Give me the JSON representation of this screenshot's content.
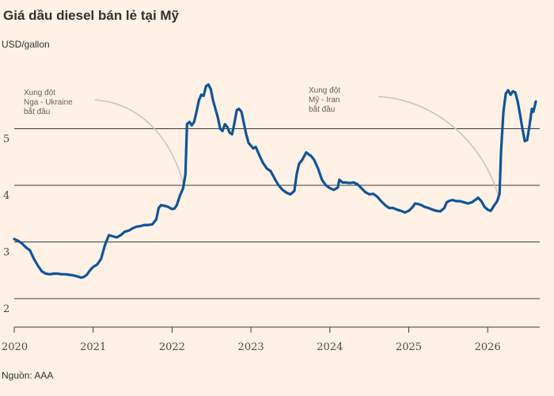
{
  "chart_data": {
    "type": "line",
    "title": "Giá dầu diesel bán lẻ tại Mỹ",
    "subtitle": "USD/gallon",
    "source": "Nguồn: AAA",
    "xlabel": "",
    "ylabel": "",
    "xlim": [
      2020.0,
      2026.65
    ],
    "ylim": [
      1.6,
      5.8
    ],
    "y_ticks": [
      2,
      3,
      4,
      5
    ],
    "x_ticks": [
      2020,
      2021,
      2022,
      2023,
      2024,
      2025,
      2026
    ],
    "x_tick_labels": [
      "2020",
      "2021",
      "2022",
      "2023",
      "2024",
      "2025",
      "2026"
    ],
    "grid": "horizontal",
    "line_color": "#0f5499",
    "gridline_color": "#3a3a3a",
    "annotations": [
      {
        "lines": [
          "Xung đột",
          "Nga - Ukraine",
          "bắt đầu"
        ],
        "x": 2022.15,
        "y": 4.0
      },
      {
        "lines": [
          "Xung đột",
          "Mỹ - Iran",
          "bắt đầu"
        ],
        "x": 2026.15,
        "y": 3.75
      }
    ],
    "series": [
      {
        "values": [
          [
            2020.0,
            3.05
          ],
          [
            2020.05,
            3.02
          ],
          [
            2020.1,
            2.97
          ],
          [
            2020.15,
            2.9
          ],
          [
            2020.2,
            2.85
          ],
          [
            2020.25,
            2.7
          ],
          [
            2020.3,
            2.58
          ],
          [
            2020.35,
            2.48
          ],
          [
            2020.4,
            2.44
          ],
          [
            2020.45,
            2.43
          ],
          [
            2020.5,
            2.44
          ],
          [
            2020.55,
            2.44
          ],
          [
            2020.6,
            2.43
          ],
          [
            2020.65,
            2.43
          ],
          [
            2020.7,
            2.42
          ],
          [
            2020.75,
            2.41
          ],
          [
            2020.8,
            2.39
          ],
          [
            2020.85,
            2.37
          ],
          [
            2020.88,
            2.38
          ],
          [
            2020.92,
            2.42
          ],
          [
            2020.96,
            2.5
          ],
          [
            2021.0,
            2.56
          ],
          [
            2021.05,
            2.6
          ],
          [
            2021.1,
            2.7
          ],
          [
            2021.15,
            2.95
          ],
          [
            2021.2,
            3.12
          ],
          [
            2021.25,
            3.1
          ],
          [
            2021.3,
            3.08
          ],
          [
            2021.35,
            3.12
          ],
          [
            2021.4,
            3.18
          ],
          [
            2021.45,
            3.2
          ],
          [
            2021.5,
            3.24
          ],
          [
            2021.55,
            3.27
          ],
          [
            2021.6,
            3.28
          ],
          [
            2021.65,
            3.3
          ],
          [
            2021.7,
            3.3
          ],
          [
            2021.75,
            3.31
          ],
          [
            2021.8,
            3.4
          ],
          [
            2021.83,
            3.6
          ],
          [
            2021.86,
            3.65
          ],
          [
            2021.9,
            3.64
          ],
          [
            2021.95,
            3.62
          ],
          [
            2022.0,
            3.58
          ],
          [
            2022.03,
            3.59
          ],
          [
            2022.06,
            3.65
          ],
          [
            2022.1,
            3.82
          ],
          [
            2022.14,
            3.95
          ],
          [
            2022.17,
            4.2
          ],
          [
            2022.19,
            5.08
          ],
          [
            2022.22,
            5.12
          ],
          [
            2022.25,
            5.06
          ],
          [
            2022.28,
            5.12
          ],
          [
            2022.31,
            5.3
          ],
          [
            2022.34,
            5.5
          ],
          [
            2022.37,
            5.6
          ],
          [
            2022.4,
            5.58
          ],
          [
            2022.43,
            5.75
          ],
          [
            2022.46,
            5.78
          ],
          [
            2022.49,
            5.7
          ],
          [
            2022.52,
            5.5
          ],
          [
            2022.55,
            5.35
          ],
          [
            2022.58,
            5.2
          ],
          [
            2022.61,
            5.0
          ],
          [
            2022.64,
            4.96
          ],
          [
            2022.67,
            5.08
          ],
          [
            2022.7,
            5.03
          ],
          [
            2022.73,
            4.93
          ],
          [
            2022.76,
            4.9
          ],
          [
            2022.79,
            5.1
          ],
          [
            2022.82,
            5.33
          ],
          [
            2022.85,
            5.35
          ],
          [
            2022.88,
            5.3
          ],
          [
            2022.91,
            5.1
          ],
          [
            2022.94,
            4.9
          ],
          [
            2022.97,
            4.75
          ],
          [
            2023.0,
            4.7
          ],
          [
            2023.03,
            4.65
          ],
          [
            2023.06,
            4.68
          ],
          [
            2023.1,
            4.55
          ],
          [
            2023.15,
            4.4
          ],
          [
            2023.2,
            4.3
          ],
          [
            2023.25,
            4.25
          ],
          [
            2023.3,
            4.12
          ],
          [
            2023.35,
            4.0
          ],
          [
            2023.4,
            3.92
          ],
          [
            2023.45,
            3.87
          ],
          [
            2023.5,
            3.84
          ],
          [
            2023.55,
            3.9
          ],
          [
            2023.58,
            4.2
          ],
          [
            2023.61,
            4.38
          ],
          [
            2023.65,
            4.45
          ],
          [
            2023.7,
            4.58
          ],
          [
            2023.73,
            4.55
          ],
          [
            2023.76,
            4.52
          ],
          [
            2023.8,
            4.45
          ],
          [
            2023.85,
            4.3
          ],
          [
            2023.9,
            4.1
          ],
          [
            2023.95,
            4.0
          ],
          [
            2024.0,
            3.95
          ],
          [
            2024.05,
            3.92
          ],
          [
            2024.1,
            3.96
          ],
          [
            2024.12,
            4.1
          ],
          [
            2024.16,
            4.05
          ],
          [
            2024.2,
            4.05
          ],
          [
            2024.25,
            4.04
          ],
          [
            2024.3,
            4.05
          ],
          [
            2024.35,
            4.02
          ],
          [
            2024.4,
            3.95
          ],
          [
            2024.45,
            3.88
          ],
          [
            2024.5,
            3.84
          ],
          [
            2024.55,
            3.85
          ],
          [
            2024.6,
            3.8
          ],
          [
            2024.65,
            3.72
          ],
          [
            2024.7,
            3.65
          ],
          [
            2024.75,
            3.6
          ],
          [
            2024.8,
            3.6
          ],
          [
            2024.85,
            3.57
          ],
          [
            2024.9,
            3.55
          ],
          [
            2024.95,
            3.52
          ],
          [
            2025.0,
            3.55
          ],
          [
            2025.05,
            3.62
          ],
          [
            2025.08,
            3.68
          ],
          [
            2025.12,
            3.67
          ],
          [
            2025.16,
            3.65
          ],
          [
            2025.2,
            3.62
          ],
          [
            2025.25,
            3.6
          ],
          [
            2025.3,
            3.57
          ],
          [
            2025.35,
            3.55
          ],
          [
            2025.4,
            3.54
          ],
          [
            2025.45,
            3.6
          ],
          [
            2025.48,
            3.7
          ],
          [
            2025.52,
            3.73
          ],
          [
            2025.56,
            3.74
          ],
          [
            2025.6,
            3.72
          ],
          [
            2025.65,
            3.72
          ],
          [
            2025.7,
            3.7
          ],
          [
            2025.75,
            3.68
          ],
          [
            2025.8,
            3.7
          ],
          [
            2025.85,
            3.75
          ],
          [
            2025.88,
            3.78
          ],
          [
            2025.92,
            3.72
          ],
          [
            2025.96,
            3.62
          ],
          [
            2026.0,
            3.57
          ],
          [
            2026.04,
            3.55
          ],
          [
            2026.08,
            3.64
          ],
          [
            2026.12,
            3.72
          ],
          [
            2026.15,
            3.85
          ],
          [
            2026.17,
            4.6
          ],
          [
            2026.2,
            5.3
          ],
          [
            2026.23,
            5.62
          ],
          [
            2026.26,
            5.68
          ],
          [
            2026.29,
            5.6
          ],
          [
            2026.32,
            5.66
          ],
          [
            2026.35,
            5.64
          ],
          [
            2026.38,
            5.48
          ],
          [
            2026.41,
            5.25
          ],
          [
            2026.44,
            5.0
          ],
          [
            2026.47,
            4.78
          ],
          [
            2026.5,
            4.8
          ],
          [
            2026.53,
            5.05
          ],
          [
            2026.56,
            5.35
          ],
          [
            2026.58,
            5.3
          ],
          [
            2026.61,
            5.48
          ]
        ]
      }
    ]
  }
}
